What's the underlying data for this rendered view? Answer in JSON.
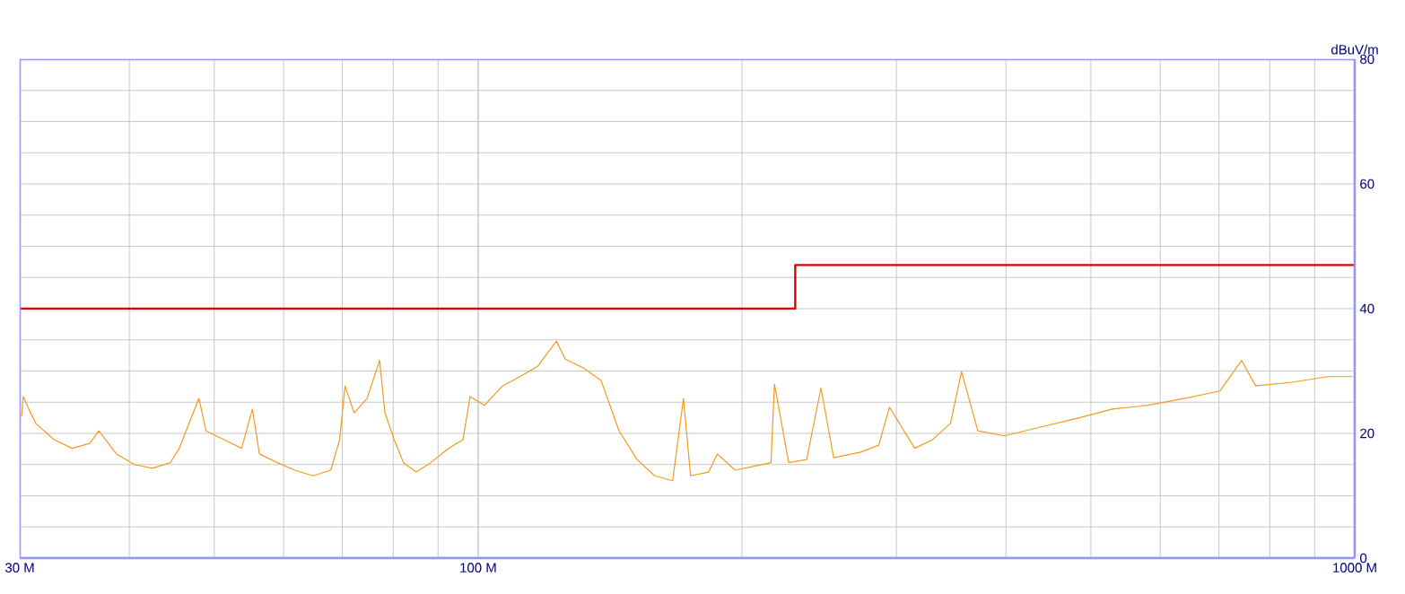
{
  "chart_data": {
    "type": "line",
    "ylabel": "dBuV/m",
    "log": "x",
    "grid": true,
    "marker": "none",
    "line_style": "solid",
    "xlim": [
      30,
      1000
    ],
    "ylim": [
      0,
      80
    ],
    "xticks": [
      {
        "value": 30,
        "label": "30 M"
      },
      {
        "value": 100,
        "label": "100 M"
      },
      {
        "value": 1000,
        "label": "1000 M"
      }
    ],
    "yticks": [
      0,
      20,
      40,
      60,
      80
    ],
    "series": [
      {
        "color": "#f29a1f",
        "x": [
          30.14,
          30.28,
          30.72,
          31.29,
          32.83,
          34.42,
          36.06,
          36.92,
          38.68,
          40.55,
          42.49,
          44.54,
          45.6,
          48.02,
          48.93,
          51.29,
          53.73,
          55.27,
          56.3,
          59.0,
          61.8,
          64.8,
          67.9,
          69.5,
          70.5,
          72.2,
          74.7,
          77.2,
          78.3,
          80.2,
          82.2,
          85.0,
          88.3,
          92.5,
          96.1,
          97.9,
          101.7,
          106.6,
          111.6,
          117.0,
          122.8,
          125.7,
          131.8,
          138.1,
          144.8,
          151.8,
          159.0,
          166.7,
          171.5,
          174.7,
          183.2,
          187.5,
          196.4,
          205.9,
          215.8,
          217.8,
          226.1,
          237.0,
          246.1,
          254.4,
          273.2,
          286.4,
          294.6,
          314.8,
          330,
          345.8,
          356,
          371.6,
          398.5,
          438,
          481.6,
          529,
          581,
          639,
          702,
          743,
          771,
          848,
          932,
          994
        ],
        "values": [
          22.7,
          25.9,
          23.9,
          21.6,
          19.0,
          17.6,
          18.4,
          20.4,
          16.7,
          15.0,
          14.4,
          15.3,
          17.6,
          25.6,
          20.4,
          19.0,
          17.6,
          23.9,
          16.7,
          15.3,
          14.1,
          13.2,
          14.1,
          19.0,
          27.6,
          23.3,
          25.6,
          31.7,
          23.3,
          19.0,
          15.3,
          13.8,
          15.3,
          17.6,
          19.0,
          25.9,
          24.5,
          27.6,
          29.1,
          30.8,
          34.8,
          31.9,
          30.5,
          28.5,
          20.4,
          15.8,
          13.2,
          12.4,
          25.6,
          13.2,
          13.8,
          16.7,
          14.1,
          14.7,
          15.3,
          27.9,
          15.3,
          15.8,
          27.3,
          16.1,
          17.0,
          18.1,
          24.2,
          17.6,
          19.0,
          21.6,
          29.9,
          20.4,
          19.6,
          21.0,
          22.4,
          23.9,
          24.5,
          25.6,
          26.8,
          31.7,
          27.6,
          28.2,
          29.1,
          29.1
        ]
      },
      {
        "type": "step",
        "color": "#e00000",
        "x": [
          30,
          230,
          1000
        ],
        "values": [
          40,
          47,
          47
        ]
      }
    ]
  }
}
